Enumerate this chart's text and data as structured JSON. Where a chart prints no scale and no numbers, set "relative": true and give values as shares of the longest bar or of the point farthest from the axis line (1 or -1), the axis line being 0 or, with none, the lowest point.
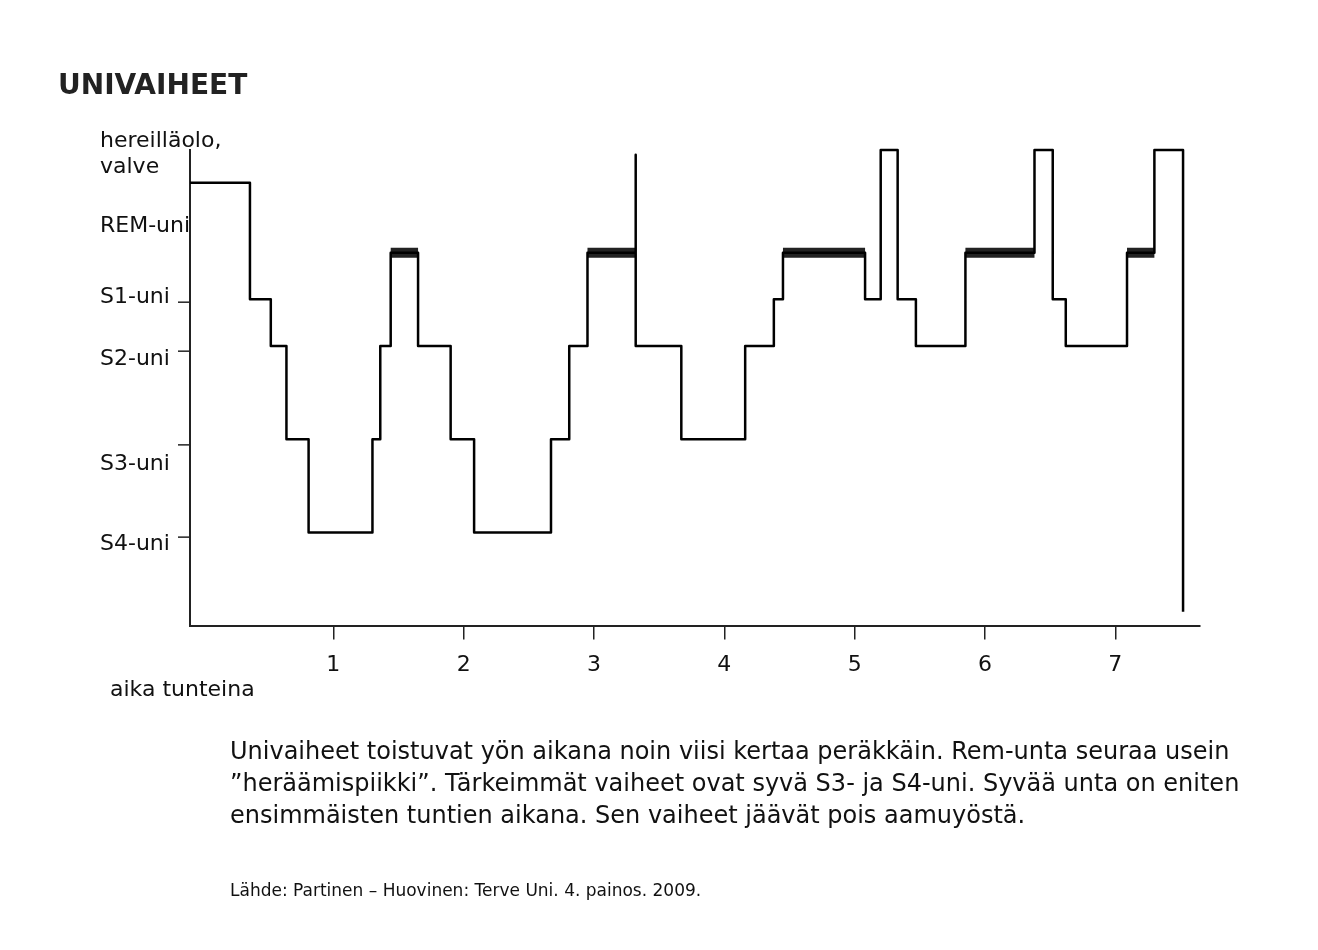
{
  "chart_data": {
    "type": "step",
    "title": "UNIVAIHEET",
    "xlabel": "aika tunteina",
    "relative": true,
    "annotations": [
      "Univaiheet toistuvat yön aikana noin viisi kertaa peräkkäin. Rem-unta seuraa usein ”heräämispiikki”. Tärkeimmät vaiheet ovat syvä S3- ja S4-uni. Syvää unta on eniten ensimmäisten tuntien aikana. Sen vaiheet jäävät pois aamuyöstä.",
      "Lähde: Partinen – Huovinen: Terve Uni. 4. painos. 2009.",
      "hereilläolo, valve",
      "REM-uni",
      "S1-uni",
      "S2-uni",
      "S3-uni",
      "S4-uni"
    ],
    "xlim": [
      -0.1,
      7.65
    ],
    "xticks": [
      1,
      2,
      3,
      4,
      5,
      6,
      7
    ],
    "grid": false,
    "legend": false,
    "series": [
      {
        "color": "#000000",
        "x": [
          -0.1,
          0.36,
          0.52,
          0.64,
          0.81,
          1.3,
          1.36,
          1.44,
          1.65,
          1.9,
          2.08,
          2.67,
          2.81,
          2.95,
          3.32,
          3.32,
          3.67,
          4.16,
          4.38,
          4.45,
          5.08,
          5.2,
          5.33,
          5.47,
          5.85,
          6.38,
          6.52,
          6.62,
          7.09,
          7.3,
          7.52
        ],
        "values": [
          0.931,
          0.686,
          0.588,
          0.392,
          0.196,
          0.392,
          0.588,
          0.784,
          0.588,
          0.392,
          0.196,
          0.392,
          0.588,
          0.784,
          0.99,
          0.588,
          0.392,
          0.588,
          0.686,
          0.784,
          0.686,
          1,
          0.686,
          0.588,
          0.784,
          1,
          0.686,
          0.588,
          0.784,
          1,
          0.029
        ]
      },
      {
        "type": "line",
        "color": "#222222",
        "x": [
          1.44,
          1.65,
          null,
          2.95,
          3.32,
          null,
          4.45,
          5.08,
          null,
          5.85,
          6.38,
          null,
          7.09,
          7.3
        ],
        "values": [
          0.784,
          0.784,
          null,
          0.784,
          0.784,
          null,
          0.784,
          0.784,
          null,
          0.784,
          0.784,
          null,
          0.784,
          0.784
        ]
      }
    ]
  }
}
